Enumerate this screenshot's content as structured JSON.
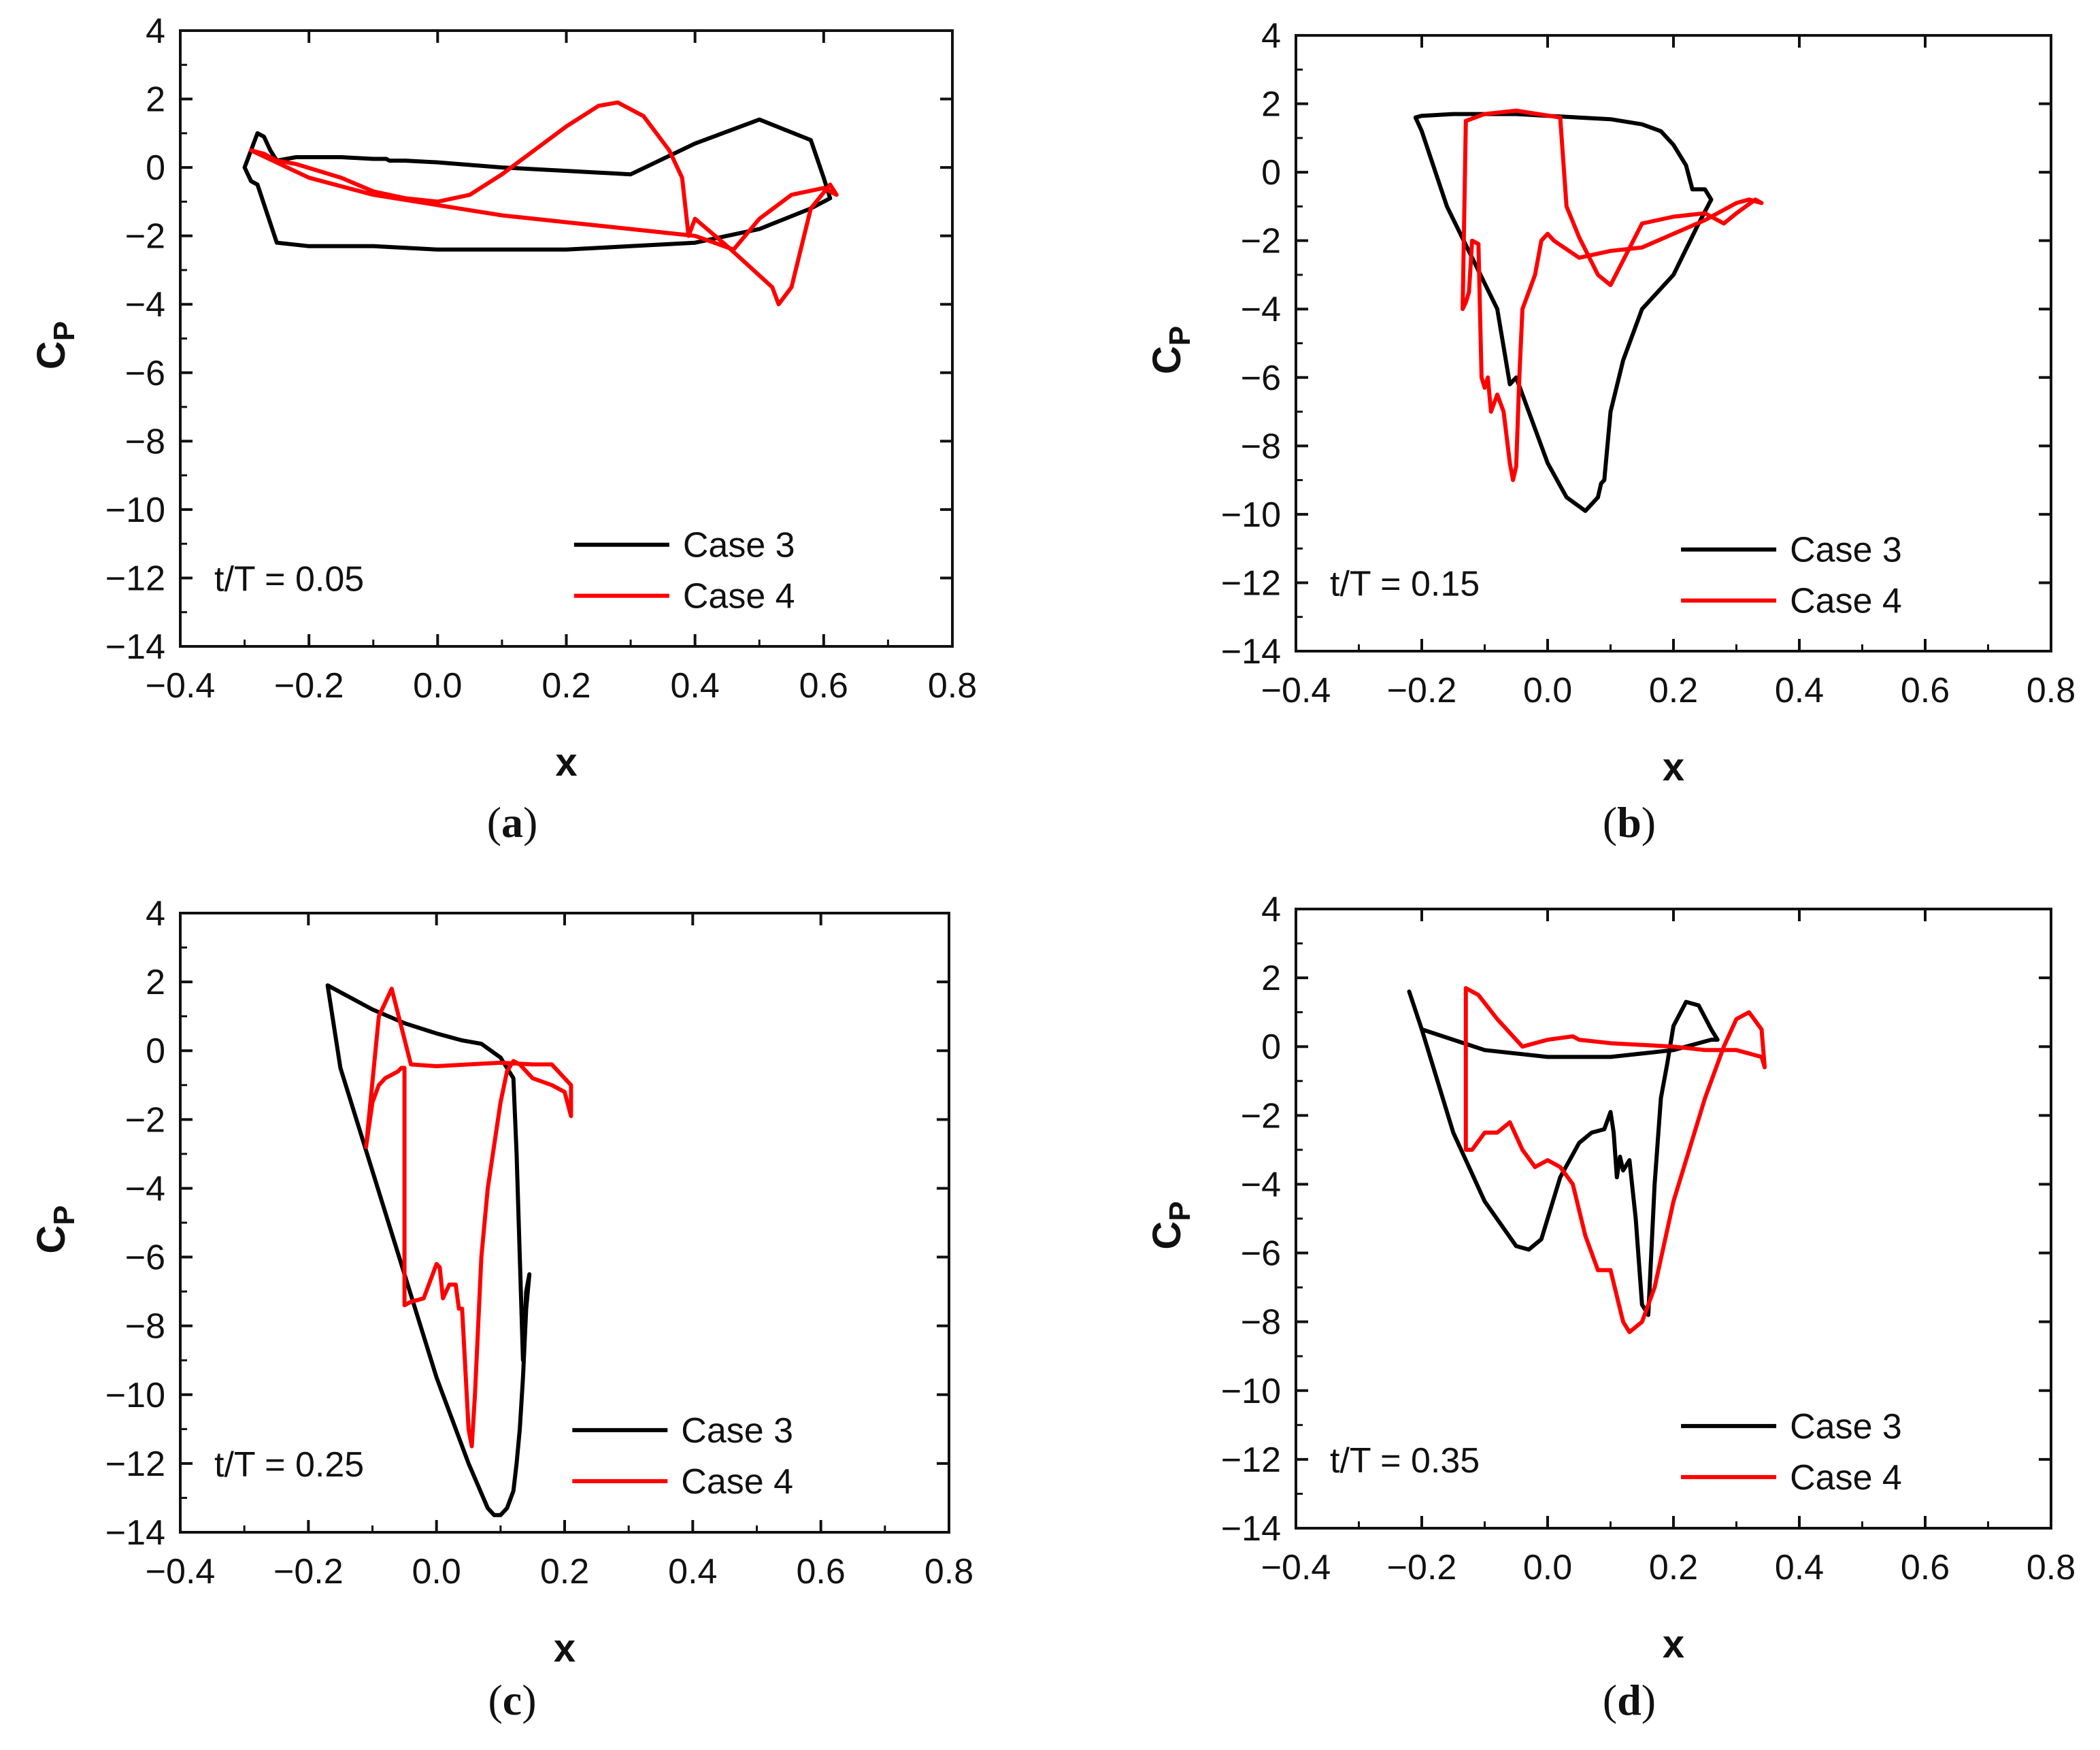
{
  "colors": {
    "case3": "#000000",
    "case4": "#ff0000",
    "axis": "#111111"
  },
  "chart_data": [
    {
      "type": "line",
      "caption_letter": "a",
      "annotation": "t/T = 0.05",
      "xlabel": "x",
      "ylabel": "C",
      "ylabel_sub": "P",
      "xlim": [
        -0.4,
        0.8
      ],
      "ylim": [
        -14,
        4
      ],
      "xticks": [
        -0.4,
        -0.2,
        0.0,
        0.2,
        0.4,
        0.6,
        0.8
      ],
      "xtick_labels": [
        "−0.4",
        "−0.2",
        "0.0",
        "0.2",
        "0.4",
        "0.6",
        "0.8"
      ],
      "yticks": [
        4,
        2,
        0,
        -2,
        -4,
        -6,
        -8,
        -10,
        -12,
        -14
      ],
      "ytick_labels": [
        "4",
        "2",
        "0",
        "−2",
        "−4",
        "−6",
        "−8",
        "−10",
        "−12",
        "−14"
      ],
      "legend": [
        "Case 3",
        "Case 4"
      ],
      "series": [
        {
          "name": "Case 3",
          "color": "#000000",
          "x": [
            -0.29,
            -0.28,
            -0.27,
            -0.26,
            -0.25,
            -0.22,
            -0.15,
            -0.1,
            -0.08,
            -0.075,
            -0.07,
            -0.05,
            0.0,
            0.1,
            0.2,
            0.3,
            0.4,
            0.5,
            0.58,
            0.6,
            0.61,
            0.6,
            0.58,
            0.5,
            0.4,
            0.3,
            0.2,
            0.1,
            0.0,
            -0.1,
            -0.2,
            -0.25,
            -0.28,
            -0.29,
            -0.3,
            -0.29
          ],
          "y": [
            0.5,
            1.0,
            0.9,
            0.5,
            0.2,
            0.3,
            0.3,
            0.25,
            0.25,
            0.2,
            0.2,
            0.2,
            0.15,
            0.0,
            -0.1,
            -0.2,
            0.7,
            1.4,
            0.8,
            -0.3,
            -0.9,
            -1.0,
            -1.2,
            -1.8,
            -2.2,
            -2.3,
            -2.4,
            -2.4,
            -2.4,
            -2.3,
            -2.3,
            -2.2,
            -0.5,
            -0.4,
            0.0,
            0.5
          ]
        },
        {
          "name": "Case 4",
          "color": "#ff0000",
          "x": [
            -0.29,
            -0.27,
            -0.25,
            -0.22,
            -0.15,
            -0.1,
            -0.05,
            0.0,
            0.05,
            0.1,
            0.15,
            0.2,
            0.25,
            0.28,
            0.32,
            0.36,
            0.38,
            0.39,
            0.4,
            0.45,
            0.52,
            0.53,
            0.55,
            0.58,
            0.61,
            0.62,
            0.6,
            0.55,
            0.5,
            0.46,
            0.4,
            0.3,
            0.2,
            0.1,
            0.0,
            -0.1,
            -0.2,
            -0.29
          ],
          "y": [
            0.5,
            0.4,
            0.2,
            0.1,
            -0.3,
            -0.7,
            -0.9,
            -1.0,
            -0.8,
            -0.2,
            0.5,
            1.2,
            1.8,
            1.9,
            1.5,
            0.5,
            -0.3,
            -2.0,
            -1.5,
            -2.3,
            -3.5,
            -4.0,
            -3.5,
            -1.2,
            -0.5,
            -0.8,
            -0.6,
            -0.8,
            -1.5,
            -2.4,
            -2.0,
            -1.8,
            -1.6,
            -1.4,
            -1.1,
            -0.8,
            -0.3,
            0.5
          ]
        }
      ]
    },
    {
      "type": "line",
      "caption_letter": "b",
      "annotation": "t/T = 0.15",
      "xlabel": "x",
      "ylabel": "C",
      "ylabel_sub": "P",
      "xlim": [
        -0.4,
        0.8
      ],
      "ylim": [
        -14,
        4
      ],
      "xticks": [
        -0.4,
        -0.2,
        0.0,
        0.2,
        0.4,
        0.6,
        0.8
      ],
      "xtick_labels": [
        "−0.4",
        "−0.2",
        "0.0",
        "0.2",
        "0.4",
        "0.6",
        "0.8"
      ],
      "yticks": [
        4,
        2,
        0,
        -2,
        -4,
        -6,
        -8,
        -10,
        -12,
        -14
      ],
      "ytick_labels": [
        "4",
        "2",
        "0",
        "−2",
        "−4",
        "−6",
        "−8",
        "−10",
        "−12",
        "−14"
      ],
      "legend": [
        "Case 3",
        "Case 4"
      ],
      "series": [
        {
          "name": "Case 3",
          "color": "#000000",
          "x": [
            -0.21,
            -0.2,
            -0.15,
            -0.1,
            -0.05,
            0.0,
            0.05,
            0.1,
            0.15,
            0.18,
            0.2,
            0.22,
            0.23,
            0.25,
            0.26,
            0.24,
            0.2,
            0.15,
            0.12,
            0.1,
            0.09,
            0.085,
            0.08,
            0.06,
            0.03,
            0.0,
            -0.03,
            -0.05,
            -0.06,
            -0.08,
            -0.12,
            -0.16,
            -0.2,
            -0.21
          ],
          "y": [
            1.6,
            1.65,
            1.7,
            1.7,
            1.7,
            1.65,
            1.6,
            1.55,
            1.4,
            1.2,
            0.8,
            0.2,
            -0.5,
            -0.5,
            -0.8,
            -1.5,
            -3.0,
            -4.0,
            -5.5,
            -7.0,
            -9.0,
            -9.1,
            -9.5,
            -9.9,
            -9.5,
            -8.5,
            -7.0,
            -6.0,
            -6.2,
            -4.0,
            -2.5,
            -1.0,
            1.2,
            1.6
          ]
        },
        {
          "name": "Case 4",
          "color": "#ff0000",
          "x": [
            -0.135,
            -0.13,
            -0.125,
            -0.12,
            -0.11,
            -0.105,
            -0.1,
            -0.095,
            -0.09,
            -0.08,
            -0.07,
            -0.06,
            -0.055,
            -0.05,
            -0.045,
            -0.04,
            -0.03,
            -0.02,
            -0.01,
            0.0,
            0.01,
            0.05,
            0.1,
            0.15,
            0.2,
            0.25,
            0.3,
            0.32,
            0.34,
            0.33,
            0.3,
            0.28,
            0.25,
            0.2,
            0.15,
            0.1,
            0.08,
            0.05,
            0.03,
            0.02,
            -0.05,
            -0.1,
            -0.13,
            -0.135
          ],
          "y": [
            -4.0,
            -3.8,
            -3.5,
            -2.0,
            -2.1,
            -6.0,
            -6.3,
            -6.0,
            -7.0,
            -6.5,
            -7.0,
            -8.5,
            -9.0,
            -8.6,
            -6.0,
            -4.0,
            -3.5,
            -3.0,
            -2.0,
            -1.8,
            -2.0,
            -2.5,
            -2.3,
            -2.2,
            -1.8,
            -1.4,
            -0.9,
            -0.8,
            -0.9,
            -0.8,
            -1.2,
            -1.5,
            -1.2,
            -1.3,
            -1.5,
            -3.3,
            -3.0,
            -1.9,
            -1.0,
            1.6,
            1.8,
            1.7,
            1.5,
            -4.0
          ]
        }
      ]
    },
    {
      "type": "line",
      "caption_letter": "c",
      "annotation": "t/T = 0.25",
      "xlabel": "x",
      "ylabel": "C",
      "ylabel_sub": "P",
      "xlim": [
        -0.4,
        0.8
      ],
      "ylim": [
        -14,
        4
      ],
      "xticks": [
        -0.4,
        -0.2,
        0.0,
        0.2,
        0.4,
        0.6,
        0.8
      ],
      "xtick_labels": [
        "−0.4",
        "−0.2",
        "0.0",
        "0.2",
        "0.4",
        "0.6",
        "0.8"
      ],
      "yticks": [
        4,
        2,
        0,
        -2,
        -4,
        -6,
        -8,
        -10,
        -12,
        -14
      ],
      "ytick_labels": [
        "4",
        "2",
        "0",
        "−2",
        "−4",
        "−6",
        "−8",
        "−10",
        "−12",
        "−14"
      ],
      "legend": [
        "Case 3",
        "Case 4"
      ],
      "series": [
        {
          "name": "Case 3",
          "color": "#000000",
          "x": [
            -0.17,
            -0.1,
            -0.05,
            0.0,
            0.04,
            0.07,
            0.1,
            0.12,
            0.125,
            0.13,
            0.135,
            0.14,
            0.145,
            0.14,
            0.135,
            0.13,
            0.125,
            0.12,
            0.11,
            0.1,
            0.09,
            0.08,
            0.05,
            0.0,
            -0.05,
            -0.1,
            -0.15,
            -0.17
          ],
          "y": [
            1.9,
            1.2,
            0.8,
            0.5,
            0.3,
            0.2,
            -0.2,
            -0.8,
            -3.0,
            -6.0,
            -9.0,
            -7.0,
            -6.5,
            -7.5,
            -9.5,
            -11.0,
            -12.0,
            -12.8,
            -13.3,
            -13.5,
            -13.5,
            -13.3,
            -12.0,
            -9.5,
            -6.5,
            -3.5,
            -0.5,
            1.9
          ]
        },
        {
          "name": "Case 4",
          "color": "#ff0000",
          "x": [
            -0.11,
            -0.1,
            -0.09,
            -0.08,
            -0.07,
            -0.06,
            -0.055,
            -0.05,
            -0.05,
            -0.04,
            -0.02,
            0.0,
            0.005,
            0.01,
            0.02,
            0.03,
            0.035,
            0.04,
            0.05,
            0.055,
            0.06,
            0.07,
            0.08,
            0.1,
            0.11,
            0.12,
            0.13,
            0.15,
            0.18,
            0.2,
            0.21,
            0.21,
            0.18,
            0.15,
            0.1,
            0.05,
            0.0,
            -0.04,
            -0.07,
            -0.09,
            -0.11
          ],
          "y": [
            -2.8,
            -1.5,
            -1.0,
            -0.8,
            -0.7,
            -0.6,
            -0.5,
            -0.5,
            -7.4,
            -7.3,
            -7.2,
            -6.2,
            -6.3,
            -7.2,
            -6.8,
            -6.8,
            -7.5,
            -7.5,
            -11.0,
            -11.5,
            -10.0,
            -6.0,
            -4.0,
            -1.5,
            -0.6,
            -0.3,
            -0.4,
            -0.8,
            -1.0,
            -1.2,
            -1.9,
            -1.0,
            -0.4,
            -0.4,
            -0.35,
            -0.4,
            -0.45,
            -0.4,
            1.8,
            1.0,
            -2.8
          ]
        }
      ]
    },
    {
      "type": "line",
      "caption_letter": "d",
      "annotation": "t/T = 0.35",
      "xlabel": "x",
      "ylabel": "C",
      "ylabel_sub": "P",
      "xlim": [
        -0.4,
        0.8
      ],
      "ylim": [
        -14,
        4
      ],
      "xticks": [
        -0.4,
        -0.2,
        0.0,
        0.2,
        0.4,
        0.6,
        0.8
      ],
      "xtick_labels": [
        "−0.4",
        "−0.2",
        "0.0",
        "0.2",
        "0.4",
        "0.6",
        "0.8"
      ],
      "yticks": [
        4,
        2,
        0,
        -2,
        -4,
        -6,
        -8,
        -10,
        -12,
        -14
      ],
      "ytick_labels": [
        "4",
        "2",
        "0",
        "−2",
        "−4",
        "−6",
        "−8",
        "−10",
        "−12",
        "−14"
      ],
      "legend": [
        "Case 3",
        "Case 4"
      ],
      "series": [
        {
          "name": "Case 3",
          "color": "#000000",
          "x": [
            -0.22,
            -0.2,
            -0.15,
            -0.1,
            -0.05,
            -0.03,
            -0.01,
            0.0,
            0.02,
            0.05,
            0.07,
            0.09,
            0.1,
            0.105,
            0.11,
            0.115,
            0.12,
            0.13,
            0.14,
            0.15,
            0.16,
            0.17,
            0.18,
            0.19,
            0.2,
            0.22,
            0.24,
            0.26,
            0.27,
            0.26,
            0.2,
            0.1,
            0.0,
            -0.1,
            -0.2,
            -0.22
          ],
          "y": [
            1.6,
            0.5,
            -2.5,
            -4.5,
            -5.8,
            -5.9,
            -5.6,
            -5.0,
            -3.8,
            -2.8,
            -2.5,
            -2.4,
            -1.9,
            -2.5,
            -3.8,
            -3.2,
            -3.6,
            -3.3,
            -5.0,
            -7.5,
            -7.8,
            -4.0,
            -1.5,
            -0.5,
            0.6,
            1.3,
            1.2,
            0.5,
            0.2,
            0.2,
            -0.1,
            -0.3,
            -0.3,
            -0.1,
            0.5,
            1.6
          ]
        },
        {
          "name": "Case 4",
          "color": "#ff0000",
          "x": [
            -0.13,
            -0.12,
            -0.1,
            -0.08,
            -0.06,
            -0.04,
            -0.02,
            0.0,
            0.02,
            0.04,
            0.06,
            0.08,
            0.1,
            0.12,
            0.13,
            0.15,
            0.17,
            0.2,
            0.25,
            0.28,
            0.3,
            0.32,
            0.34,
            0.345,
            0.34,
            0.3,
            0.25,
            0.2,
            0.1,
            0.05,
            0.04,
            0.0,
            -0.04,
            -0.08,
            -0.11,
            -0.13,
            -0.13
          ],
          "y": [
            -3.0,
            -3.0,
            -2.5,
            -2.5,
            -2.2,
            -3.0,
            -3.5,
            -3.3,
            -3.5,
            -4.0,
            -5.5,
            -6.5,
            -6.5,
            -8.0,
            -8.3,
            -8.0,
            -7.0,
            -4.5,
            -1.5,
            0.0,
            0.8,
            1.0,
            0.5,
            -0.6,
            -0.3,
            -0.1,
            -0.1,
            0.0,
            0.1,
            0.2,
            0.3,
            0.2,
            0.0,
            0.8,
            1.5,
            1.7,
            -3.0
          ]
        }
      ]
    }
  ]
}
